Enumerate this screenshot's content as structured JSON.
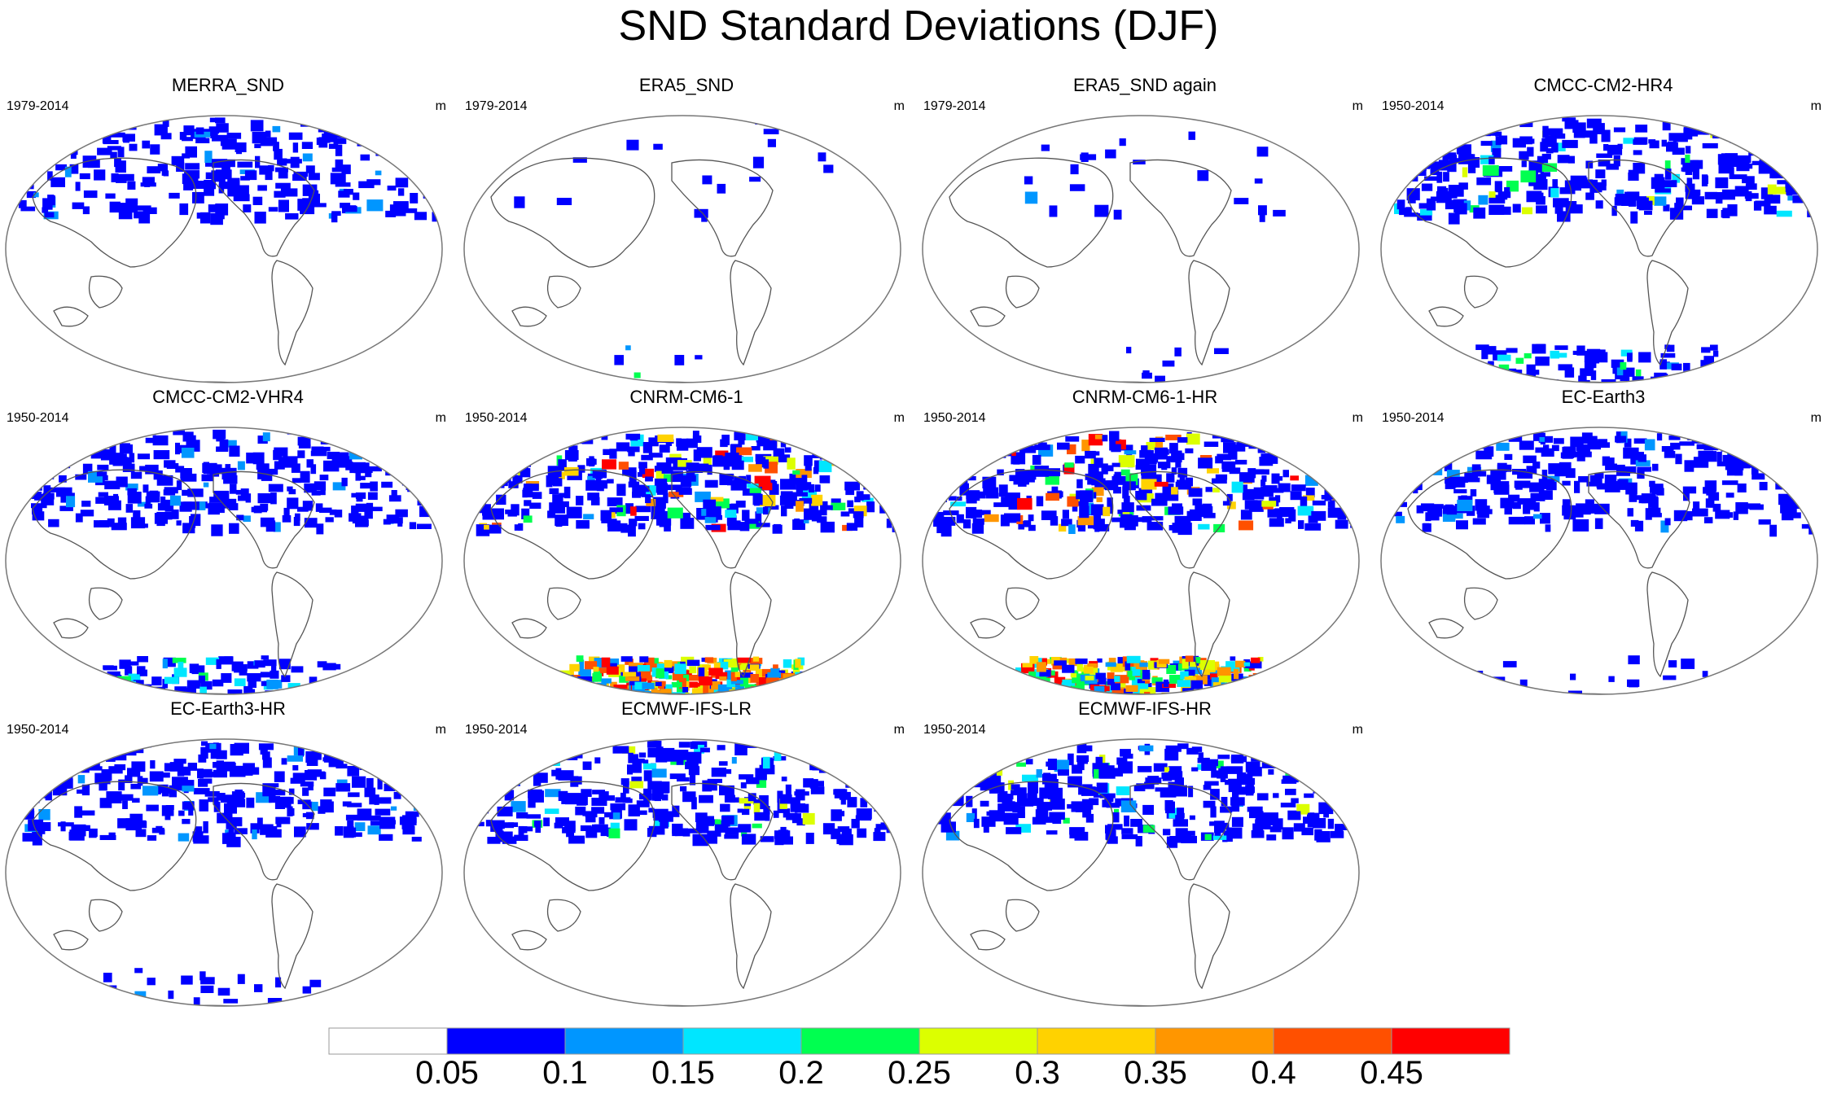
{
  "title": "SND Standard Deviations (DJF)",
  "units": "m",
  "panels": [
    {
      "title": "MERRA_SND",
      "years": "1979-2014",
      "nh": 0.55,
      "sh": 0.0
    },
    {
      "title": "ERA5_SND",
      "years": "1979-2014",
      "nh": 0.04,
      "sh": 0.03
    },
    {
      "title": "ERA5_SND again",
      "years": "1979-2014",
      "nh": 0.04,
      "sh": 0.03
    },
    {
      "title": "CMCC-CM2-HR4",
      "years": "1950-2014",
      "nh": 0.65,
      "sh": 0.35
    },
    {
      "title": "CMCC-CM2-VHR4",
      "years": "1950-2014",
      "nh": 0.6,
      "sh": 0.3
    },
    {
      "title": "CNRM-CM6-1",
      "years": "1950-2014",
      "nh": 0.8,
      "sh": 0.85
    },
    {
      "title": "CNRM-CM6-1-HR",
      "years": "1950-2014",
      "nh": 0.8,
      "sh": 0.85
    },
    {
      "title": "EC-Earth3",
      "years": "1950-2014",
      "nh": 0.6,
      "sh": 0.05
    },
    {
      "title": "EC-Earth3-HR",
      "years": "1950-2014",
      "nh": 0.6,
      "sh": 0.08
    },
    {
      "title": "ECMWF-IFS-LR",
      "years": "1950-2014",
      "nh": 0.65,
      "sh": 0.0
    },
    {
      "title": "ECMWF-IFS-HR",
      "years": "1950-2014",
      "nh": 0.65,
      "sh": 0.0
    }
  ],
  "colorbar": {
    "labels": [
      "0.05",
      "0.1",
      "0.15",
      "0.2",
      "0.25",
      "0.3",
      "0.35",
      "0.4",
      "0.45"
    ],
    "colors": [
      "#ffffff",
      "#0000ff",
      "#0096ff",
      "#00e6ff",
      "#00ff50",
      "#dcff00",
      "#ffd200",
      "#ff9600",
      "#ff5000",
      "#ff0000"
    ]
  }
}
